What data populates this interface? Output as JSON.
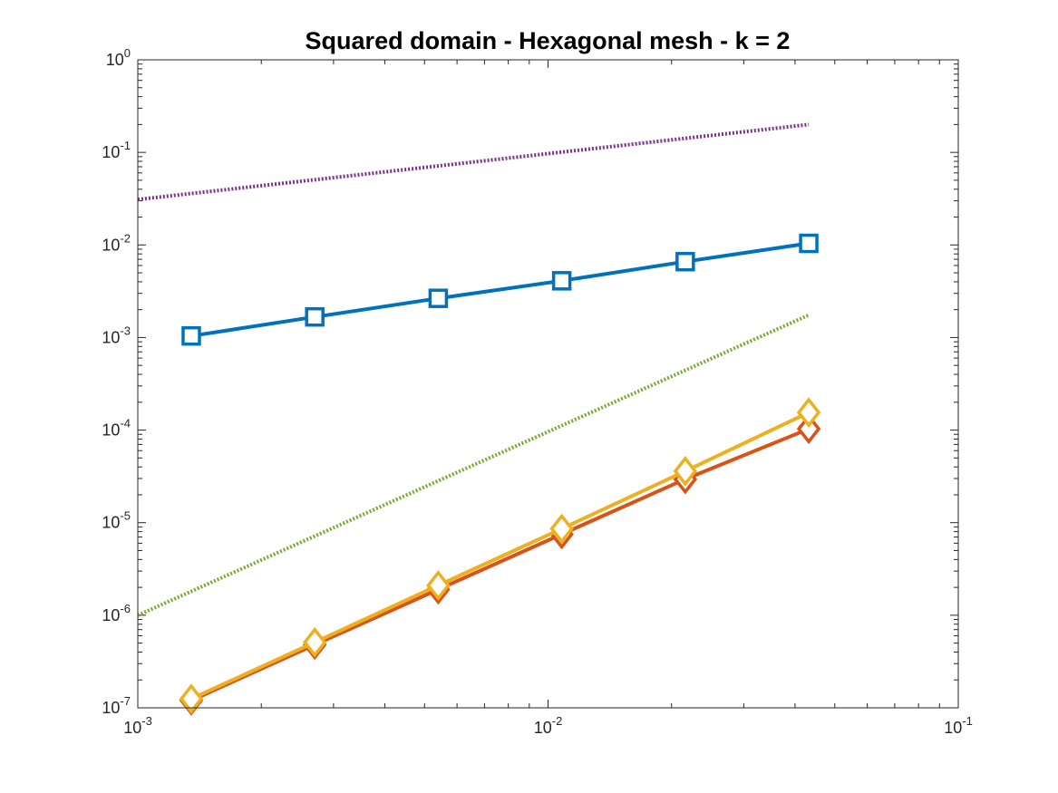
{
  "chart_data": {
    "type": "line",
    "title": "Squared domain - Hexagonal mesh - k = 2",
    "xlabel": "",
    "ylabel": "",
    "xscale": "log",
    "yscale": "log",
    "xlim": [
      0.001,
      0.1
    ],
    "ylim": [
      1e-07,
      1
    ],
    "grid": false,
    "legend": "none",
    "x_ticks": [
      {
        "value": 0.001,
        "base": "10",
        "exp": "-3"
      },
      {
        "value": 0.01,
        "base": "10",
        "exp": "-2"
      },
      {
        "value": 0.1,
        "base": "10",
        "exp": "-1"
      }
    ],
    "y_ticks": [
      {
        "value": 1,
        "base": "10",
        "exp": "0"
      },
      {
        "value": 0.1,
        "base": "10",
        "exp": "-1"
      },
      {
        "value": 0.01,
        "base": "10",
        "exp": "-2"
      },
      {
        "value": 0.001,
        "base": "10",
        "exp": "-3"
      },
      {
        "value": 0.0001,
        "base": "10",
        "exp": "-4"
      },
      {
        "value": 1e-05,
        "base": "10",
        "exp": "-5"
      },
      {
        "value": 1e-06,
        "base": "10",
        "exp": "-6"
      },
      {
        "value": 1e-07,
        "base": "10",
        "exp": "-7"
      }
    ],
    "series": [
      {
        "color": "#0072BD",
        "marker": "square",
        "style": "solid",
        "x": [
          0.00135,
          0.0027,
          0.0054,
          0.0108,
          0.0216,
          0.0432
        ],
        "y": [
          0.00104,
          0.00167,
          0.00265,
          0.0041,
          0.0066,
          0.0104
        ]
      },
      {
        "color": "#D95319",
        "marker": "diamond",
        "style": "solid",
        "x": [
          0.00135,
          0.0027,
          0.0054,
          0.0108,
          0.0216,
          0.0432
        ],
        "y": [
          1.2e-07,
          4.8e-07,
          1.9e-06,
          7.5e-06,
          2.95e-05,
          0.000103
        ]
      },
      {
        "color": "#EDB120",
        "marker": "diamond",
        "style": "solid",
        "x": [
          0.00135,
          0.0027,
          0.0054,
          0.0108,
          0.0216,
          0.0432
        ],
        "y": [
          1.25e-07,
          5.1e-07,
          2.1e-06,
          8.6e-06,
          3.6e-05,
          0.000155
        ]
      },
      {
        "color": "#7E2F8E",
        "marker": "none",
        "style": "dotted",
        "x": [
          0.001,
          0.0432
        ],
        "y": [
          0.031,
          0.2
        ]
      },
      {
        "color": "#77AC30",
        "marker": "none",
        "style": "dotted",
        "x": [
          0.001,
          0.0432
        ],
        "y": [
          1e-06,
          0.00175
        ]
      }
    ]
  }
}
